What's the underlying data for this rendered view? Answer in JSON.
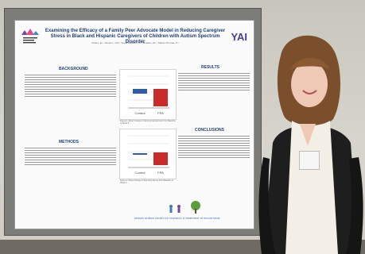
{
  "poster": {
    "title": "Examining the Efficacy of a Family Peer Advocate Model in Reducing Caregiver Stress in Black and Hispanic Caregivers of Children with Autism Spectrum Disorder",
    "authors": "Parker, E.¹, Jamison, J.M.², Soper-Hepburn, A.¹, Hopkins, M.¹, Tolliver-Thomas, P.¹",
    "left_logo": "Icahn School of Medicine at Mount Sinai",
    "right_logo": "YAI",
    "headings": {
      "background": "BACKGROUND",
      "methods": "METHODS",
      "results": "RESULTS",
      "conclusions": "CONCLUSIONS"
    },
    "figure_captions": {
      "top": "Figure 1. Mean Change in Family Empowerment from Baseline to Week 6",
      "bottom": "Figure 2. Mean Change in Parenting Stress from Baseline to Week 6"
    },
    "chart_labels": {
      "control": "Control",
      "fpa": "FPA"
    },
    "footer": "seaver autism center for research & treatment at mount sinai"
  },
  "person": {
    "badge": "Name Badge"
  }
}
